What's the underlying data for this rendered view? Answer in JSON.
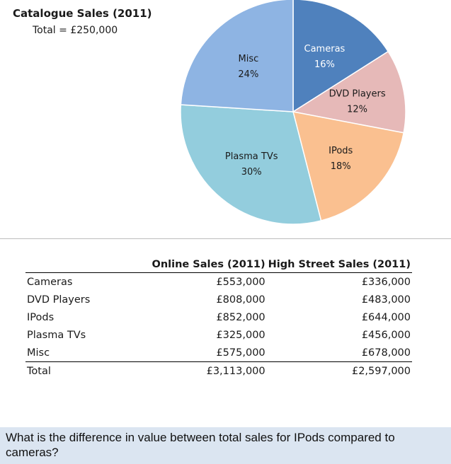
{
  "chart_data": [
    {
      "type": "pie",
      "title": "Catalogue Sales (2011)",
      "subtitle": "Total = £250,000",
      "slices": [
        {
          "label": "Cameras",
          "percent_label": "16%",
          "value": 16,
          "color": "#4f81bd",
          "label_color": "#ffffff"
        },
        {
          "label": "DVD Players",
          "percent_label": "12%",
          "value": 12,
          "color": "#e6b9b8",
          "label_color": "#1a1a1a"
        },
        {
          "label": "IPods",
          "percent_label": "18%",
          "value": 18,
          "color": "#fac090",
          "label_color": "#1a1a1a"
        },
        {
          "label": "Plasma TVs",
          "percent_label": "30%",
          "value": 30,
          "color": "#93cddd",
          "label_color": "#1a1a1a"
        },
        {
          "label": "Misc",
          "percent_label": "24%",
          "value": 24,
          "color": "#8eb4e3",
          "label_color": "#1a1a1a"
        }
      ]
    },
    {
      "type": "table",
      "columns": [
        "",
        "Online Sales (2011)",
        "High Street Sales (2011)"
      ],
      "rows": [
        {
          "name": "Cameras",
          "online": "£553,000",
          "high_street": "£336,000"
        },
        {
          "name": "DVD Players",
          "online": "£808,000",
          "high_street": "£483,000"
        },
        {
          "name": "IPods",
          "online": "£852,000",
          "high_street": "£644,000"
        },
        {
          "name": "Plasma TVs",
          "online": "£325,000",
          "high_street": "£456,000"
        },
        {
          "name": "Misc",
          "online": "£575,000",
          "high_street": "£678,000"
        }
      ],
      "total": {
        "name": "Total",
        "online": "£3,113,000",
        "high_street": "£2,597,000"
      }
    }
  ],
  "question": "What is the difference in value between total sales for IPods compared to cameras?",
  "colors": {
    "question_bg": "#dbe5f1",
    "divider": "#bdbdbd"
  }
}
